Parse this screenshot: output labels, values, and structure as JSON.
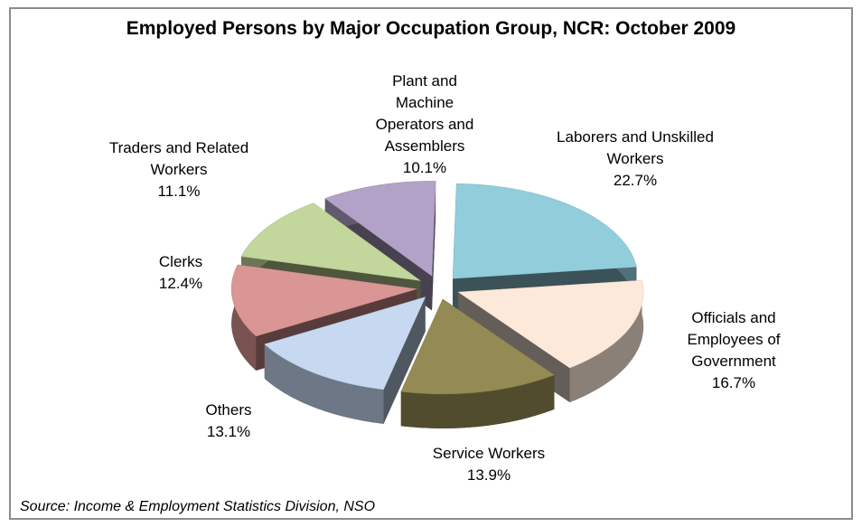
{
  "chart_data": {
    "type": "pie",
    "title": "Employed Persons by Major Occupation Group, NCR: October 2009",
    "source": "Source: Income & Employment Statistics Division, NSO",
    "categories": [
      "Laborers and Unskilled Workers",
      "Officials and Employees of Government",
      "Service Workers",
      "Others",
      "Clerks",
      "Traders and Related Workers",
      "Plant and Machine Operators and Assemblers"
    ],
    "values": [
      22.7,
      16.7,
      13.9,
      13.1,
      12.4,
      11.1,
      10.1
    ],
    "value_labels": [
      "22.7%",
      "16.7%",
      "13.9%",
      "13.1%",
      "12.4%",
      "11.1%",
      "10.1%"
    ],
    "colors": [
      "#92cddc",
      "#fde9d9",
      "#948a54",
      "#c6d9f1",
      "#da9694",
      "#c3d69b",
      "#b3a2c7"
    ]
  }
}
